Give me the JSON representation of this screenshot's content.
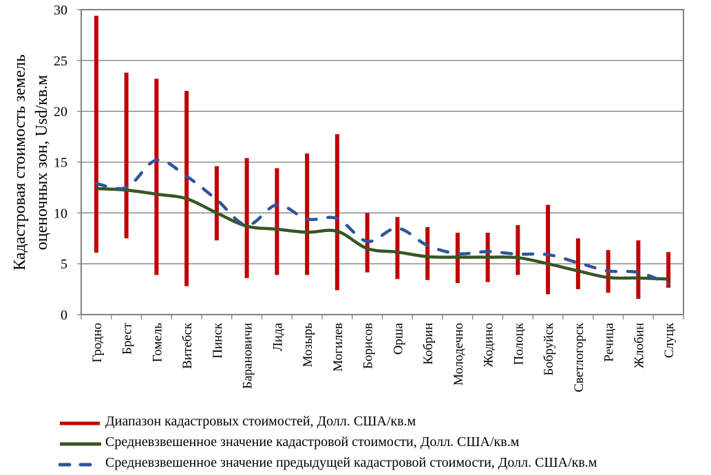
{
  "chart_data": {
    "type": "line",
    "title": "",
    "xlabel": "",
    "ylabel_lines": [
      "Кадастровая  стоимость земель",
      "оценочных зон, Usd/кв.м"
    ],
    "ylim": [
      0,
      30
    ],
    "yticks": [
      0,
      5,
      10,
      15,
      20,
      25,
      30
    ],
    "grid": true,
    "legend_position": "bottom",
    "categories": [
      "Гродно",
      "Брест",
      "Гомель",
      "Витебск",
      "Пинск",
      "Барановичи",
      "Лида",
      "Мозырь",
      "Могилев",
      "Борисов",
      "Орша",
      "Кобрин",
      "Молодечно",
      "Жодино",
      "Полоцк",
      "Бобруйск",
      "Светлогорск",
      "Речица",
      "Жлобин",
      "Слуцк"
    ],
    "series": [
      {
        "name": "Диапазон кадастровых стоимостей, Долл. США/кв.м",
        "kind": "range",
        "color": "#c00000",
        "low": [
          6.1,
          7.5,
          3.9,
          2.8,
          7.3,
          3.6,
          3.9,
          3.9,
          2.4,
          4.15,
          3.5,
          3.4,
          3.1,
          3.2,
          3.9,
          2.0,
          2.5,
          2.15,
          1.55,
          2.65
        ],
        "high": [
          29.4,
          23.8,
          23.2,
          22.0,
          14.6,
          15.4,
          14.4,
          15.85,
          17.75,
          10.0,
          9.6,
          8.6,
          8.05,
          8.05,
          8.8,
          10.8,
          7.5,
          6.35,
          7.3,
          6.15
        ]
      },
      {
        "name": "Средневзвешенное значение кадастровой стоимости, Долл. США/кв.м",
        "kind": "line",
        "color": "#375623",
        "values": [
          12.4,
          12.25,
          11.85,
          11.4,
          10.0,
          8.7,
          8.4,
          8.1,
          8.2,
          6.5,
          6.15,
          5.7,
          5.65,
          5.65,
          5.6,
          5.0,
          4.3,
          3.65,
          3.6,
          3.5
        ]
      },
      {
        "name": "Средневзвешенное значение предыдущей кадастровой стоимости, Долл. США/кв.м",
        "kind": "dashed-line",
        "color": "#2f5597",
        "values": [
          12.9,
          12.5,
          15.2,
          13.6,
          11.3,
          8.8,
          10.8,
          9.4,
          9.45,
          7.2,
          8.5,
          6.8,
          6.0,
          6.2,
          5.95,
          5.9,
          5.1,
          4.3,
          4.15,
          3.05
        ]
      }
    ]
  }
}
